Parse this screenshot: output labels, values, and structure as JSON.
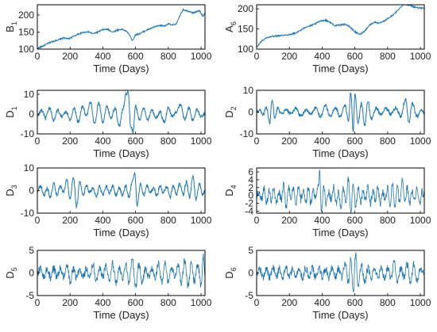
{
  "chart_data": [
    {
      "type": "line",
      "ylabel": "B",
      "ylabel_sub": "1",
      "xlabel": "Time (Days)",
      "xlim": [
        0,
        1024
      ],
      "ylim": [
        100,
        230
      ],
      "xticks": [
        0,
        200,
        400,
        600,
        800,
        1000
      ],
      "yticks": [
        100,
        150,
        200
      ],
      "series": [
        {
          "x": [
            0,
            20,
            50,
            80,
            110,
            140,
            160,
            190,
            220,
            250,
            280,
            310,
            340,
            370,
            400,
            430,
            460,
            490,
            520,
            550,
            565,
            580,
            600,
            630,
            660,
            690,
            720,
            750,
            780,
            800,
            820,
            850,
            870,
            890,
            910,
            930,
            950,
            970,
            990,
            1010,
            1024
          ],
          "y": [
            102,
            106,
            113,
            120,
            125,
            129,
            133,
            130,
            137,
            144,
            149,
            151,
            145,
            150,
            157,
            158,
            150,
            156,
            158,
            150,
            140,
            125,
            142,
            146,
            154,
            160,
            166,
            169,
            168,
            175,
            170,
            174,
            198,
            216,
            213,
            210,
            206,
            209,
            213,
            197,
            204
          ]
        }
      ]
    },
    {
      "type": "line",
      "ylabel": "A",
      "ylabel_sub": "6",
      "xlabel": "Time (Days)",
      "xlim": [
        0,
        1024
      ],
      "ylim": [
        100,
        210
      ],
      "xticks": [
        0,
        200,
        400,
        600,
        800,
        1000
      ],
      "yticks": [
        100,
        150,
        200
      ],
      "series": [
        {
          "x": [
            0,
            30,
            60,
            90,
            120,
            150,
            180,
            210,
            240,
            270,
            300,
            330,
            360,
            390,
            420,
            450,
            480,
            510,
            540,
            570,
            600,
            630,
            660,
            690,
            720,
            750,
            780,
            810,
            840,
            870,
            900,
            930,
            960,
            990,
            1024
          ],
          "y": [
            104,
            120,
            128,
            131,
            133,
            134,
            135,
            137,
            140,
            147,
            155,
            158,
            163,
            170,
            172,
            166,
            158,
            160,
            162,
            155,
            143,
            136,
            145,
            160,
            167,
            164,
            170,
            178,
            187,
            200,
            212,
            209,
            205,
            202,
            201
          ]
        }
      ]
    },
    {
      "type": "line",
      "ylabel": "D",
      "ylabel_sub": "1",
      "xlabel": "Time (Days)",
      "xlim": [
        0,
        1024
      ],
      "ylim": [
        -10,
        12
      ],
      "xticks": [
        0,
        200,
        400,
        600,
        800,
        1000
      ],
      "yticks": [
        -10,
        0,
        10
      ],
      "series": [
        {
          "x": [
            0,
            25,
            50,
            75,
            100,
            125,
            150,
            175,
            200,
            225,
            250,
            275,
            300,
            325,
            350,
            375,
            400,
            425,
            450,
            475,
            500,
            525,
            540,
            555,
            570,
            585,
            600,
            625,
            650,
            675,
            700,
            725,
            750,
            775,
            800,
            825,
            850,
            875,
            900,
            925,
            950,
            975,
            1000,
            1024
          ],
          "y": [
            -1,
            2,
            -2,
            3,
            -3,
            2,
            -1,
            1,
            -3,
            3,
            -4,
            4,
            -1,
            6,
            -5,
            6,
            -4,
            4,
            -2,
            3,
            -6,
            3,
            10,
            11,
            -6,
            -9,
            4,
            -3,
            3,
            -3,
            2,
            -2,
            1,
            -4,
            3,
            -1,
            1,
            5,
            -3,
            3,
            -3,
            2,
            -1,
            0
          ]
        }
      ]
    },
    {
      "type": "line",
      "ylabel": "D",
      "ylabel_sub": "2",
      "xlabel": "Time (Days)",
      "xlim": [
        0,
        1024
      ],
      "ylim": [
        -10,
        10
      ],
      "xticks": [
        0,
        200,
        400,
        600,
        800,
        1000
      ],
      "yticks": [
        -10,
        0,
        10
      ],
      "series": [
        {
          "x": [
            0,
            20,
            40,
            60,
            80,
            95,
            110,
            130,
            150,
            180,
            210,
            240,
            270,
            300,
            330,
            360,
            390,
            420,
            450,
            480,
            510,
            540,
            560,
            575,
            590,
            600,
            620,
            640,
            660,
            680,
            700,
            730,
            760,
            790,
            820,
            850,
            880,
            910,
            930,
            950,
            980,
            1010,
            1024
          ],
          "y": [
            0,
            1,
            -1,
            2,
            -5,
            6,
            -3,
            2,
            -1,
            1,
            -1,
            2,
            -2,
            1,
            -1,
            2,
            -2,
            3,
            -2,
            2,
            -2,
            3,
            -4,
            9,
            -9,
            8,
            -5,
            4,
            -6,
            5,
            -3,
            2,
            -1,
            2,
            -1,
            2,
            -2,
            6,
            -5,
            4,
            -2,
            1,
            0
          ]
        }
      ]
    },
    {
      "type": "line",
      "ylabel": "D",
      "ylabel_sub": "3",
      "xlabel": "Time (Days)",
      "xlim": [
        0,
        1024
      ],
      "ylim": [
        -10,
        10
      ],
      "xticks": [
        0,
        200,
        400,
        600,
        800,
        1000
      ],
      "yticks": [
        -10,
        0,
        10
      ],
      "series": [
        {
          "x": [
            0,
            20,
            40,
            60,
            80,
            100,
            120,
            140,
            160,
            180,
            200,
            220,
            240,
            260,
            280,
            300,
            320,
            340,
            360,
            380,
            400,
            420,
            440,
            460,
            480,
            500,
            520,
            540,
            560,
            580,
            595,
            610,
            630,
            650,
            670,
            690,
            710,
            730,
            750,
            770,
            790,
            810,
            830,
            850,
            870,
            890,
            910,
            930,
            950,
            970,
            990,
            1010,
            1024
          ],
          "y": [
            0,
            2,
            -2,
            1,
            -3,
            3,
            -2,
            2,
            -1,
            5,
            -4,
            6,
            -7,
            4,
            -2,
            2,
            -1,
            1,
            -3,
            2,
            -2,
            2,
            -1,
            2,
            -2,
            1,
            -2,
            2,
            -3,
            4,
            8,
            -7,
            3,
            -2,
            2,
            -1,
            1,
            -2,
            2,
            -1,
            2,
            -3,
            2,
            -2,
            3,
            -2,
            4,
            -3,
            6,
            -4,
            3,
            -2,
            0
          ]
        }
      ]
    },
    {
      "type": "line",
      "ylabel": "D",
      "ylabel_sub": "4",
      "xlabel": "Time (Days)",
      "xlim": [
        0,
        1024
      ],
      "ylim": [
        -4.5,
        7
      ],
      "xticks": [
        0,
        200,
        400,
        600,
        800,
        1000
      ],
      "yticks": [
        -4,
        -2,
        0,
        2,
        4,
        6
      ],
      "series": [
        {
          "x": [
            0,
            15,
            30,
            45,
            60,
            75,
            90,
            105,
            120,
            135,
            150,
            165,
            180,
            195,
            210,
            225,
            240,
            255,
            270,
            285,
            300,
            315,
            330,
            345,
            360,
            375,
            385,
            395,
            410,
            425,
            440,
            455,
            470,
            485,
            500,
            515,
            530,
            545,
            560,
            575,
            590,
            605,
            620,
            635,
            650,
            665,
            680,
            695,
            710,
            725,
            740,
            755,
            770,
            785,
            800,
            815,
            830,
            845,
            860,
            875,
            890,
            905,
            920,
            935,
            950,
            965,
            980,
            995,
            1010,
            1024
          ],
          "y": [
            0,
            1,
            -1,
            2,
            -2,
            1,
            -1,
            2,
            -2,
            1,
            -1,
            3,
            -3,
            2,
            -1,
            2,
            -3,
            2,
            -1,
            1,
            -2,
            2,
            -2,
            1,
            -1,
            2,
            6,
            -4,
            2,
            -2,
            1,
            -1,
            2,
            -2,
            1,
            -3,
            2,
            -2,
            4,
            -4,
            3,
            -3,
            2,
            -2,
            1,
            -1,
            2,
            -2,
            1,
            -1,
            2,
            -2,
            1,
            -1,
            2,
            -2,
            3,
            -3,
            2,
            -2,
            4,
            -2,
            2,
            -2,
            1,
            -1,
            2,
            -2,
            1,
            0
          ]
        }
      ]
    },
    {
      "type": "line",
      "ylabel": "D",
      "ylabel_sub": "5",
      "xlabel": "Time (Days)",
      "xlim": [
        0,
        1024
      ],
      "ylim": [
        -5,
        5
      ],
      "xticks": [
        0,
        200,
        400,
        600,
        800,
        1000
      ],
      "yticks": [
        -5,
        0,
        5
      ],
      "series": [
        {
          "x": [
            0,
            20,
            40,
            60,
            80,
            100,
            120,
            140,
            160,
            180,
            200,
            220,
            240,
            260,
            280,
            300,
            320,
            340,
            360,
            380,
            400,
            420,
            440,
            460,
            480,
            500,
            520,
            540,
            560,
            580,
            600,
            620,
            640,
            660,
            680,
            700,
            720,
            740,
            760,
            780,
            800,
            820,
            840,
            860,
            880,
            900,
            920,
            940,
            960,
            980,
            1000,
            1015,
            1024
          ],
          "y": [
            0,
            1,
            -1,
            1,
            -1,
            1,
            -1,
            1,
            -1,
            2,
            -2,
            1,
            -1,
            1,
            -1,
            1,
            -1,
            2,
            -2,
            1,
            -1,
            2,
            -2,
            2,
            -2,
            1,
            -1,
            2,
            -2,
            3,
            -3,
            2,
            -2,
            1,
            -1,
            1,
            -1,
            2,
            -2,
            2,
            -2,
            1,
            -1,
            2,
            -2,
            3,
            -3,
            2,
            -2,
            2,
            -3,
            4,
            -1
          ]
        }
      ]
    },
    {
      "type": "line",
      "ylabel": "D",
      "ylabel_sub": "6",
      "xlabel": "Time (Days)",
      "xlim": [
        0,
        1024
      ],
      "ylim": [
        -5,
        5
      ],
      "xticks": [
        0,
        200,
        400,
        600,
        800,
        1000
      ],
      "yticks": [
        -5,
        0,
        5
      ],
      "series": [
        {
          "x": [
            0,
            20,
            40,
            60,
            80,
            100,
            120,
            140,
            160,
            180,
            200,
            220,
            240,
            260,
            280,
            300,
            320,
            340,
            360,
            380,
            400,
            420,
            440,
            460,
            480,
            500,
            520,
            540,
            560,
            575,
            590,
            605,
            620,
            640,
            660,
            680,
            700,
            720,
            740,
            760,
            780,
            800,
            820,
            840,
            860,
            880,
            900,
            920,
            940,
            960,
            980,
            1000,
            1024
          ],
          "y": [
            0,
            1,
            -1,
            1,
            -1,
            1,
            -1,
            1,
            -1,
            1,
            -1,
            1,
            -1,
            1,
            -1,
            1,
            -1,
            1,
            -1,
            1,
            -1,
            1,
            -1,
            1,
            -1,
            1,
            -1,
            2,
            -2,
            3,
            -4,
            4,
            -3,
            2,
            -2,
            1,
            -1,
            1,
            -1,
            1,
            -1,
            1,
            -1,
            2,
            -2,
            1,
            -1,
            2,
            -2,
            2,
            -2,
            1,
            0
          ]
        }
      ]
    }
  ],
  "style": {
    "line_color": "#1f77b4",
    "axis_color": "#000000",
    "tick_color": "#222222"
  }
}
